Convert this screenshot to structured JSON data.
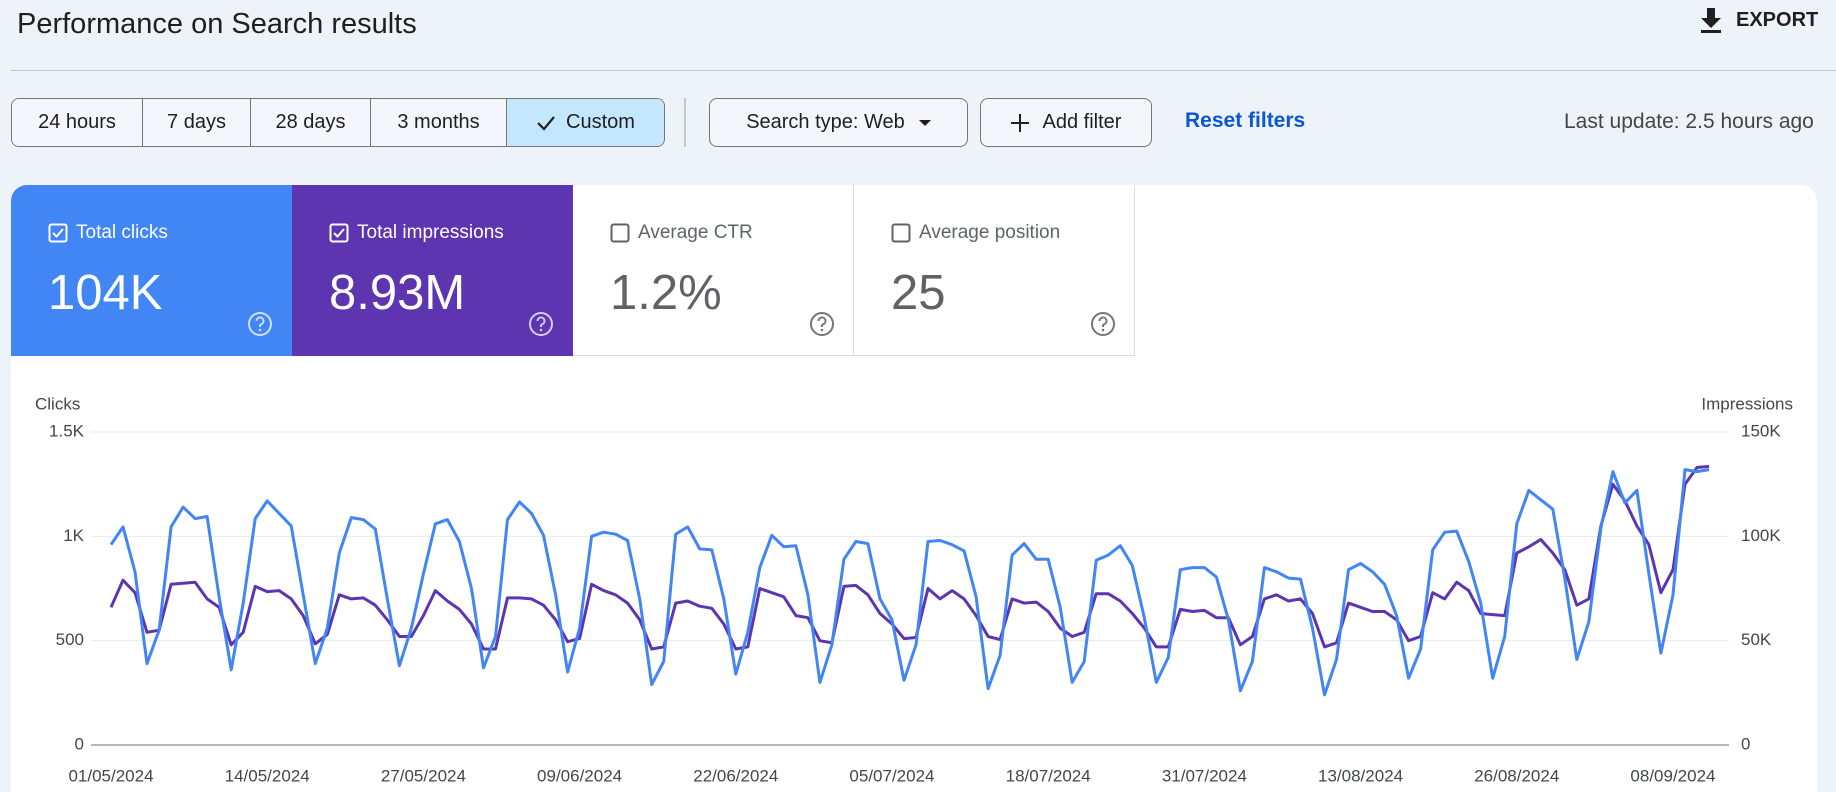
{
  "header": {
    "title": "Performance on Search results",
    "export": "EXPORT"
  },
  "filters": {
    "date_ranges": [
      {
        "label": "24 hours",
        "selected": false
      },
      {
        "label": "7 days",
        "selected": false
      },
      {
        "label": "28 days",
        "selected": false
      },
      {
        "label": "3 months",
        "selected": false
      },
      {
        "label": "Custom",
        "selected": true
      }
    ],
    "search_type": "Search type: Web",
    "add_filter": "Add filter",
    "reset_filters": "Reset filters",
    "last_update": "Last update: 2.5 hours ago"
  },
  "metrics": [
    {
      "label": "Total clicks",
      "value": "104K",
      "checked": true,
      "color": "#4285f4"
    },
    {
      "label": "Total impressions",
      "value": "8.93M",
      "checked": true,
      "color": "#5e35b1"
    },
    {
      "label": "Average CTR",
      "value": "1.2%",
      "checked": false
    },
    {
      "label": "Average position",
      "value": "25",
      "checked": false
    }
  ],
  "chart_data": {
    "type": "line",
    "y_label": "Clicks",
    "y2_label": "Impressions",
    "grid": true,
    "categories": [
      "01/05/2024",
      null,
      null,
      null,
      null,
      null,
      null,
      null,
      null,
      null,
      null,
      null,
      null,
      "14/05/2024",
      null,
      null,
      null,
      null,
      null,
      null,
      null,
      null,
      null,
      null,
      null,
      null,
      "27/05/2024",
      null,
      null,
      null,
      null,
      null,
      null,
      null,
      null,
      null,
      null,
      null,
      null,
      "09/06/2024",
      null,
      null,
      null,
      null,
      null,
      null,
      null,
      null,
      null,
      null,
      null,
      null,
      "22/06/2024",
      null,
      null,
      null,
      null,
      null,
      null,
      null,
      null,
      null,
      null,
      null,
      null,
      "05/07/2024",
      null,
      null,
      null,
      null,
      null,
      null,
      null,
      null,
      null,
      null,
      null,
      null,
      "18/07/2024",
      null,
      null,
      null,
      null,
      null,
      null,
      null,
      null,
      null,
      null,
      null,
      null,
      "31/07/2024",
      null,
      null,
      null,
      null,
      null,
      null,
      null,
      null,
      null,
      null,
      null,
      null,
      "13/08/2024",
      null,
      null,
      null,
      null,
      null,
      null,
      null,
      null,
      null,
      null,
      null,
      null,
      "26/08/2024",
      null,
      null,
      null,
      null,
      null,
      null,
      null,
      null,
      null,
      null,
      null,
      null,
      "08/09/2024",
      null,
      null,
      null
    ],
    "ylim": [
      0,
      1500
    ],
    "yticks": [
      0,
      500,
      {
        "value": 1000,
        "label": "1K"
      },
      {
        "value": 1500,
        "label": "1.5K"
      }
    ],
    "y2lim": [
      0,
      150000
    ],
    "y2ticks": [
      0,
      {
        "value": 50000,
        "label": "50K"
      },
      {
        "value": 100000,
        "label": "100K"
      },
      {
        "value": 150000,
        "label": "150K"
      }
    ],
    "series": [
      {
        "color": "#5e35b1",
        "axis": "y2",
        "values": [
          66000,
          79000,
          73000,
          54000,
          55000,
          77000,
          77500,
          78000,
          70000,
          66000,
          48000,
          54000,
          76000,
          73500,
          74000,
          70000,
          62000,
          48500,
          53000,
          72000,
          70000,
          70500,
          67000,
          60000,
          52000,
          52000,
          62000,
          74000,
          69000,
          65000,
          58000,
          46000,
          46000,
          70500,
          70500,
          70000,
          67000,
          60000,
          49500,
          51000,
          77000,
          74000,
          72000,
          68000,
          60000,
          46000,
          47000,
          68000,
          69000,
          66500,
          65500,
          58000,
          46000,
          47000,
          75000,
          73000,
          71000,
          62000,
          61000,
          50000,
          49000,
          76000,
          76500,
          72000,
          63000,
          58000,
          51000,
          51500,
          75000,
          70000,
          74000,
          70000,
          62000,
          52000,
          50500,
          70000,
          68000,
          68500,
          64000,
          56000,
          52000,
          54000,
          72500,
          72500,
          69000,
          63000,
          56000,
          47000,
          47000,
          65000,
          64000,
          64500,
          61000,
          61000,
          48000,
          52000,
          70000,
          72000,
          69000,
          70000,
          63000,
          47000,
          49000,
          68000,
          66000,
          64000,
          64000,
          60000,
          50000,
          52000,
          73000,
          70000,
          78000,
          74000,
          63000,
          62500,
          62000,
          92000,
          95000,
          98500,
          92000,
          84000,
          67000,
          70000,
          105000,
          125000,
          117000,
          105000,
          96000,
          73000,
          84000,
          125000,
          133000,
          133500
        ]
      },
      {
        "color": "#4285f4",
        "values": [
          960,
          1045,
          830,
          390,
          550,
          1045,
          1140,
          1085,
          1095,
          710,
          360,
          680,
          1085,
          1170,
          1110,
          1050,
          720,
          390,
          560,
          920,
          1090,
          1080,
          1035,
          700,
          380,
          560,
          820,
          1060,
          1080,
          975,
          750,
          370,
          520,
          1080,
          1165,
          1110,
          1005,
          720,
          350,
          560,
          1000,
          1020,
          1010,
          980,
          700,
          290,
          400,
          1010,
          1045,
          940,
          935,
          700,
          340,
          540,
          850,
          1005,
          950,
          955,
          720,
          300,
          480,
          890,
          975,
          965,
          700,
          600,
          310,
          480,
          975,
          980,
          960,
          930,
          710,
          270,
          430,
          910,
          965,
          890,
          890,
          660,
          300,
          400,
          885,
          910,
          955,
          860,
          610,
          300,
          420,
          840,
          850,
          850,
          805,
          600,
          260,
          400,
          850,
          830,
          800,
          795,
          560,
          240,
          410,
          840,
          870,
          830,
          770,
          620,
          320,
          460,
          935,
          1020,
          1025,
          880,
          680,
          320,
          520,
          1060,
          1220,
          1175,
          1130,
          800,
          410,
          590,
          1040,
          1310,
          1160,
          1220,
          820,
          440,
          720,
          1320,
          1310,
          1320
        ]
      }
    ]
  }
}
